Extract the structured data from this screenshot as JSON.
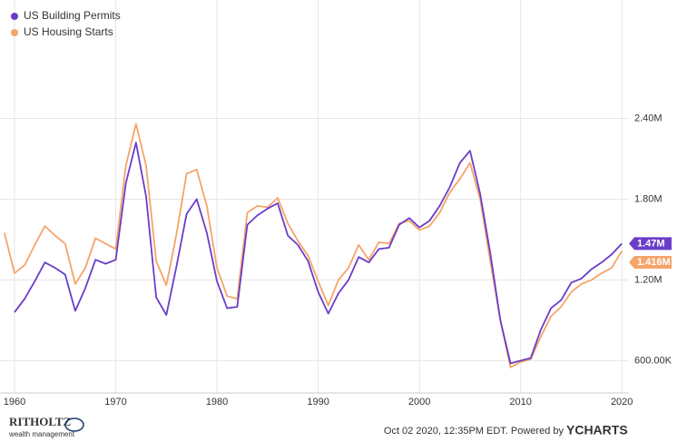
{
  "chart_data": {
    "type": "line",
    "xlim": [
      1959,
      2020.7
    ],
    "xticks": [
      1960,
      1970,
      1980,
      1990,
      2000,
      2010,
      2020
    ],
    "ylim": [
      360000,
      3280000
    ],
    "yticks": [
      {
        "value": 600000,
        "label": "600.00K"
      },
      {
        "value": 1200000,
        "label": "1.20M"
      },
      {
        "value": 1800000,
        "label": "1.80M"
      },
      {
        "value": 2400000,
        "label": "2.40M"
      }
    ],
    "grid": true,
    "legend": "top-left",
    "series": [
      {
        "name": "US Building Permits",
        "color": "#6a3dc9",
        "last_label": "1.47M",
        "x": [
          1960,
          1961,
          1962,
          1963,
          1964,
          1965,
          1966,
          1967,
          1968,
          1969,
          1970,
          1971,
          1972,
          1973,
          1974,
          1975,
          1976,
          1977,
          1978,
          1979,
          1980,
          1981,
          1982,
          1983,
          1984,
          1985,
          1986,
          1987,
          1988,
          1989,
          1990,
          1991,
          1992,
          1993,
          1994,
          1995,
          1996,
          1997,
          1998,
          1999,
          2000,
          2001,
          2002,
          2003,
          2004,
          2005,
          2006,
          2007,
          2008,
          2009,
          2010,
          2011,
          2012,
          2013,
          2014,
          2015,
          2016,
          2017,
          2018,
          2019,
          2020
        ],
        "values": [
          960000,
          1060000,
          1190000,
          1330000,
          1290000,
          1240000,
          970000,
          1140000,
          1350000,
          1320000,
          1350000,
          1920000,
          2220000,
          1820000,
          1070000,
          940000,
          1300000,
          1690000,
          1800000,
          1550000,
          1190000,
          990000,
          1000000,
          1610000,
          1680000,
          1730000,
          1770000,
          1530000,
          1460000,
          1340000,
          1110000,
          950000,
          1100000,
          1200000,
          1370000,
          1330000,
          1430000,
          1440000,
          1610000,
          1660000,
          1590000,
          1640000,
          1750000,
          1890000,
          2070000,
          2160000,
          1840000,
          1400000,
          900000,
          580000,
          600000,
          620000,
          830000,
          990000,
          1050000,
          1180000,
          1210000,
          1280000,
          1330000,
          1390000,
          1470000
        ]
      },
      {
        "name": "US Housing Starts",
        "color": "#f5a46a",
        "last_label": "1.416M",
        "x": [
          1959,
          1960,
          1961,
          1962,
          1963,
          1964,
          1965,
          1966,
          1967,
          1968,
          1969,
          1970,
          1971,
          1972,
          1973,
          1974,
          1975,
          1976,
          1977,
          1978,
          1979,
          1980,
          1981,
          1982,
          1983,
          1984,
          1985,
          1986,
          1987,
          1988,
          1989,
          1990,
          1991,
          1992,
          1993,
          1994,
          1995,
          1996,
          1997,
          1998,
          1999,
          2000,
          2001,
          2002,
          2003,
          2004,
          2005,
          2006,
          2007,
          2008,
          2009,
          2010,
          2011,
          2012,
          2013,
          2014,
          2015,
          2016,
          2017,
          2018,
          2019,
          2020
        ],
        "values": [
          1550000,
          1250000,
          1310000,
          1460000,
          1600000,
          1530000,
          1470000,
          1170000,
          1290000,
          1510000,
          1470000,
          1430000,
          2050000,
          2360000,
          2050000,
          1340000,
          1160000,
          1540000,
          1990000,
          2020000,
          1750000,
          1290000,
          1080000,
          1060000,
          1700000,
          1750000,
          1740000,
          1810000,
          1620000,
          1490000,
          1380000,
          1190000,
          1010000,
          1200000,
          1290000,
          1460000,
          1350000,
          1480000,
          1470000,
          1620000,
          1640000,
          1570000,
          1600000,
          1700000,
          1850000,
          1950000,
          2070000,
          1800000,
          1340000,
          900000,
          550000,
          590000,
          610000,
          780000,
          930000,
          1000000,
          1110000,
          1170000,
          1200000,
          1250000,
          1290000,
          1416000
        ]
      }
    ],
    "source": "Oct 02 2020, 12:35PM EDT. Powered by",
    "logo": "YCHARTS",
    "brand": "RITHOLTZ",
    "brand_sub": "wealth management"
  }
}
